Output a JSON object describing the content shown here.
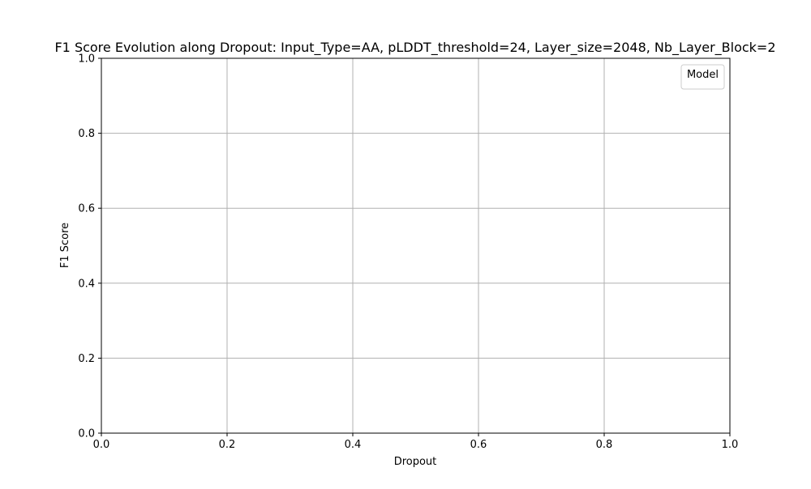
{
  "chart_data": {
    "type": "line",
    "title": "F1 Score Evolution along Dropout: Input_Type=AA, pLDDT_threshold=24, Layer_size=2048, Nb_Layer_Block=2",
    "xlabel": "Dropout",
    "ylabel": "F1 Score",
    "xlim": [
      0.0,
      1.0
    ],
    "ylim": [
      0.0,
      1.0
    ],
    "xticks": [
      "0.0",
      "0.2",
      "0.4",
      "0.6",
      "0.8",
      "1.0"
    ],
    "yticks": [
      "0.0",
      "0.2",
      "0.4",
      "0.6",
      "0.8",
      "1.0"
    ],
    "grid": true,
    "legend": {
      "title": "Model",
      "placement": "top-right",
      "entries": []
    },
    "series": []
  },
  "colors": {
    "grid": "#b0b0b0",
    "axes": "#000000",
    "legend_border": "#cccccc"
  }
}
